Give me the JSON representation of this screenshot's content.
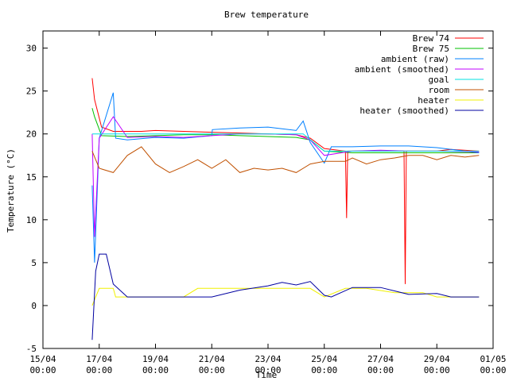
{
  "chart_data": {
    "type": "line",
    "title": "Brew temperature",
    "xlabel": "Time",
    "ylabel": "Temperature (°C)",
    "ylim": [
      -5,
      32
    ],
    "xlim": [
      "2012-04-15 00:00",
      "2012-05-01 00:00"
    ],
    "grid": false,
    "legend_position": "top-right",
    "y_ticks": [
      "-5",
      "0",
      "5",
      "10",
      "15",
      "20",
      "25",
      "30"
    ],
    "x_ticks": [
      {
        "date": "15/04",
        "time": "00:00"
      },
      {
        "date": "17/04",
        "time": "00:00"
      },
      {
        "date": "19/04",
        "time": "00:00"
      },
      {
        "date": "21/04",
        "time": "00:00"
      },
      {
        "date": "23/04",
        "time": "00:00"
      },
      {
        "date": "25/04",
        "time": "00:00"
      },
      {
        "date": "27/04",
        "time": "00:00"
      },
      {
        "date": "29/04",
        "time": "00:00"
      },
      {
        "date": "01/05",
        "time": "00:00"
      }
    ],
    "series": [
      {
        "name": "Brew 74",
        "color": "#ff0000",
        "points": [
          [
            "2012-04-16 18:00",
            26.5
          ],
          [
            "2012-04-16 20:00",
            24
          ],
          [
            "2012-04-17 02:00",
            20.8
          ],
          [
            "2012-04-17 12:00",
            20.3
          ],
          [
            "2012-04-18 12:00",
            20.3
          ],
          [
            "2012-04-19 00:00",
            20.4
          ],
          [
            "2012-04-20 00:00",
            20.3
          ],
          [
            "2012-04-21 00:00",
            20.2
          ],
          [
            "2012-04-22 00:00",
            20.1
          ],
          [
            "2012-04-23 00:00",
            20.0
          ],
          [
            "2012-04-24 00:00",
            19.9
          ],
          [
            "2012-04-24 12:00",
            19.5
          ],
          [
            "2012-04-25 00:00",
            18.3
          ],
          [
            "2012-04-25 18:00",
            18.0
          ],
          [
            "2012-04-25 19:00",
            10.2
          ],
          [
            "2012-04-25 20:00",
            18.0
          ],
          [
            "2012-04-27 20:00",
            18.0
          ],
          [
            "2012-04-27 21:00",
            2.5
          ],
          [
            "2012-04-27 22:00",
            18.0
          ],
          [
            "2012-04-29 00:00",
            18.0
          ],
          [
            "2012-04-29 12:00",
            18.2
          ],
          [
            "2012-04-30 12:00",
            18.0
          ]
        ]
      },
      {
        "name": "Brew 75",
        "color": "#00c000",
        "points": [
          [
            "2012-04-16 18:00",
            23
          ],
          [
            "2012-04-16 20:00",
            22
          ],
          [
            "2012-04-17 02:00",
            19.8
          ],
          [
            "2012-04-18 00:00",
            19.7
          ],
          [
            "2012-04-19 00:00",
            19.8
          ],
          [
            "2012-04-20 00:00",
            19.9
          ],
          [
            "2012-04-21 00:00",
            19.9
          ],
          [
            "2012-04-22 00:00",
            19.8
          ],
          [
            "2012-04-23 00:00",
            19.7
          ],
          [
            "2012-04-24 00:00",
            19.6
          ],
          [
            "2012-04-24 12:00",
            19.3
          ],
          [
            "2012-04-25 00:00",
            18.0
          ],
          [
            "2012-04-26 00:00",
            17.8
          ],
          [
            "2012-04-27 00:00",
            17.8
          ],
          [
            "2012-04-28 00:00",
            17.8
          ],
          [
            "2012-04-29 00:00",
            17.8
          ],
          [
            "2012-04-30 12:00",
            17.8
          ]
        ]
      },
      {
        "name": "ambient (raw)",
        "color": "#0080ff",
        "points": [
          [
            "2012-04-16 18:00",
            14
          ],
          [
            "2012-04-16 20:00",
            5
          ],
          [
            "2012-04-17 00:00",
            19.5
          ],
          [
            "2012-04-17 12:00",
            24.8
          ],
          [
            "2012-04-17 14:00",
            19.5
          ],
          [
            "2012-04-18 00:00",
            19.3
          ],
          [
            "2012-04-19 00:00",
            19.6
          ],
          [
            "2012-04-20 00:00",
            19.5
          ],
          [
            "2012-04-21 00:00",
            19.8
          ],
          [
            "2012-04-21 00:30",
            20.5
          ],
          [
            "2012-04-22 00:00",
            20.7
          ],
          [
            "2012-04-23 00:00",
            20.8
          ],
          [
            "2012-04-23 12:00",
            20.6
          ],
          [
            "2012-04-24 00:00",
            20.4
          ],
          [
            "2012-04-24 06:00",
            21.5
          ],
          [
            "2012-04-24 12:00",
            19.0
          ],
          [
            "2012-04-25 00:00",
            16.6
          ],
          [
            "2012-04-25 06:00",
            18.5
          ],
          [
            "2012-04-26 00:00",
            18.5
          ],
          [
            "2012-04-27 00:00",
            18.6
          ],
          [
            "2012-04-28 00:00",
            18.6
          ],
          [
            "2012-04-29 00:00",
            18.4
          ],
          [
            "2012-04-30 00:00",
            18.0
          ],
          [
            "2012-04-30 12:00",
            17.8
          ]
        ]
      },
      {
        "name": "ambient (smoothed)",
        "color": "#c000ff",
        "points": [
          [
            "2012-04-16 18:00",
            20
          ],
          [
            "2012-04-16 20:00",
            8
          ],
          [
            "2012-04-17 00:00",
            19.5
          ],
          [
            "2012-04-17 12:00",
            22.0
          ],
          [
            "2012-04-18 00:00",
            19.6
          ],
          [
            "2012-04-19 00:00",
            19.7
          ],
          [
            "2012-04-20 00:00",
            19.6
          ],
          [
            "2012-04-21 00:00",
            19.8
          ],
          [
            "2012-04-22 00:00",
            20.0
          ],
          [
            "2012-04-23 00:00",
            20.0
          ],
          [
            "2012-04-24 00:00",
            19.9
          ],
          [
            "2012-04-24 12:00",
            19.3
          ],
          [
            "2012-04-25 00:00",
            17.5
          ],
          [
            "2012-04-26 00:00",
            18.0
          ],
          [
            "2012-04-27 00:00",
            18.1
          ],
          [
            "2012-04-28 00:00",
            18.0
          ],
          [
            "2012-04-29 00:00",
            18.0
          ],
          [
            "2012-04-30 12:00",
            17.9
          ]
        ]
      },
      {
        "name": "goal",
        "color": "#00e0e0",
        "points": [
          [
            "2012-04-16 18:00",
            20
          ],
          [
            "2012-04-24 06:00",
            20
          ],
          [
            "2012-04-25 00:00",
            18
          ],
          [
            "2012-04-30 12:00",
            18
          ]
        ]
      },
      {
        "name": "room",
        "color": "#c05000",
        "points": [
          [
            "2012-04-16 18:00",
            18.0
          ],
          [
            "2012-04-17 00:00",
            16.0
          ],
          [
            "2012-04-17 12:00",
            15.5
          ],
          [
            "2012-04-18 00:00",
            17.5
          ],
          [
            "2012-04-18 12:00",
            18.5
          ],
          [
            "2012-04-19 00:00",
            16.5
          ],
          [
            "2012-04-19 12:00",
            15.5
          ],
          [
            "2012-04-20 00:00",
            16.2
          ],
          [
            "2012-04-20 12:00",
            17.0
          ],
          [
            "2012-04-21 00:00",
            16.0
          ],
          [
            "2012-04-21 12:00",
            17.0
          ],
          [
            "2012-04-22 00:00",
            15.5
          ],
          [
            "2012-04-22 12:00",
            16.0
          ],
          [
            "2012-04-23 00:00",
            15.8
          ],
          [
            "2012-04-23 12:00",
            16.0
          ],
          [
            "2012-04-24 00:00",
            15.5
          ],
          [
            "2012-04-24 12:00",
            16.5
          ],
          [
            "2012-04-25 00:00",
            16.8
          ],
          [
            "2012-04-25 18:00",
            16.8
          ],
          [
            "2012-04-26 00:00",
            17.2
          ],
          [
            "2012-04-26 12:00",
            16.5
          ],
          [
            "2012-04-27 00:00",
            17.0
          ],
          [
            "2012-04-27 12:00",
            17.2
          ],
          [
            "2012-04-28 00:00",
            17.5
          ],
          [
            "2012-04-28 12:00",
            17.5
          ],
          [
            "2012-04-29 00:00",
            17.0
          ],
          [
            "2012-04-29 12:00",
            17.5
          ],
          [
            "2012-04-30 00:00",
            17.3
          ],
          [
            "2012-04-30 12:00",
            17.5
          ]
        ]
      },
      {
        "name": "heater",
        "color": "#f0f000",
        "points": [
          [
            "2012-04-16 18:00",
            0
          ],
          [
            "2012-04-17 00:00",
            2
          ],
          [
            "2012-04-17 12:00",
            2
          ],
          [
            "2012-04-17 14:00",
            1
          ],
          [
            "2012-04-19 00:00",
            1
          ],
          [
            "2012-04-20 00:00",
            1
          ],
          [
            "2012-04-20 12:00",
            2
          ],
          [
            "2012-04-21 00:00",
            2
          ],
          [
            "2012-04-22 00:00",
            2
          ],
          [
            "2012-04-23 00:00",
            2
          ],
          [
            "2012-04-24 00:00",
            2
          ],
          [
            "2012-04-24 12:00",
            2
          ],
          [
            "2012-04-25 00:00",
            1
          ],
          [
            "2012-04-25 18:00",
            2
          ],
          [
            "2012-04-26 12:00",
            2
          ],
          [
            "2012-04-27 12:00",
            1.5
          ],
          [
            "2012-04-28 12:00",
            1.5
          ],
          [
            "2012-04-29 00:00",
            1
          ],
          [
            "2012-04-30 12:00",
            1
          ]
        ]
      },
      {
        "name": "heater (smoothed)",
        "color": "#0000a0",
        "points": [
          [
            "2012-04-16 18:00",
            -4
          ],
          [
            "2012-04-16 21:00",
            4
          ],
          [
            "2012-04-17 00:00",
            6
          ],
          [
            "2012-04-17 06:00",
            6
          ],
          [
            "2012-04-17 12:00",
            2.5
          ],
          [
            "2012-04-18 00:00",
            1.0
          ],
          [
            "2012-04-19 00:00",
            1.0
          ],
          [
            "2012-04-20 00:00",
            1.0
          ],
          [
            "2012-04-21 00:00",
            1.0
          ],
          [
            "2012-04-22 00:00",
            1.8
          ],
          [
            "2012-04-23 00:00",
            2.3
          ],
          [
            "2012-04-23 12:00",
            2.7
          ],
          [
            "2012-04-24 00:00",
            2.4
          ],
          [
            "2012-04-24 12:00",
            2.8
          ],
          [
            "2012-04-25 00:00",
            1.2
          ],
          [
            "2012-04-25 06:00",
            1.0
          ],
          [
            "2012-04-26 00:00",
            2.1
          ],
          [
            "2012-04-27 00:00",
            2.1
          ],
          [
            "2012-04-28 00:00",
            1.3
          ],
          [
            "2012-04-29 00:00",
            1.4
          ],
          [
            "2012-04-29 12:00",
            1.0
          ],
          [
            "2012-04-30 12:00",
            1.0
          ]
        ]
      }
    ]
  }
}
